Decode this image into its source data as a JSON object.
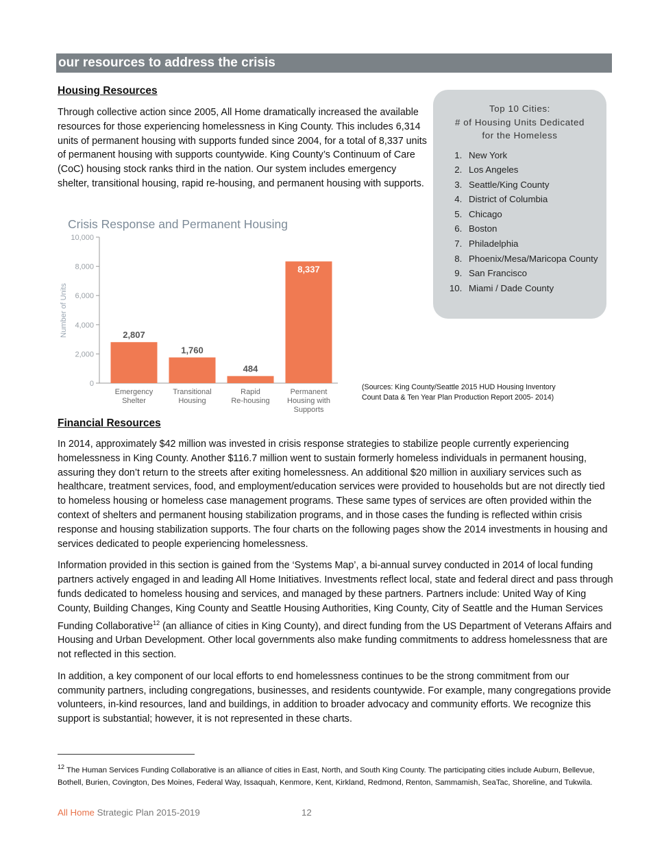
{
  "header": {
    "title": "our resources to address the crisis"
  },
  "housing": {
    "heading": "Housing Resources",
    "paragraph": "Through collective action since 2005, All Home dramatically increased the available resources for those experiencing homelessness in King County. This includes 6,314 units of permanent housing with supports funded since 2004, for a total of 8,337 units of permanent housing with supports countywide. King County’s Continuum of Care (CoC) housing stock ranks third in the nation. Our system includes emergency shelter, transitional housing, rapid re-housing, and permanent housing with supports."
  },
  "sidebar": {
    "title_lines": [
      "Top 10 Cities:",
      "# of Housing Units Dedicated",
      "for the Homeless"
    ],
    "items": [
      "New York",
      "Los Angeles",
      "Seattle/King County",
      "District of Columbia",
      "Chicago",
      "Boston",
      "Philadelphia",
      "Phoenix/Mesa/Maricopa County",
      "San Francisco",
      "Miami / Dade County"
    ]
  },
  "chart_data": {
    "type": "bar",
    "title": "Crisis Response and Permanent Housing",
    "ylabel": "Number of Units",
    "categories": [
      [
        "Emergency",
        "Shelter"
      ],
      [
        "Transitional",
        "Housing"
      ],
      [
        "Rapid",
        "Re-housing"
      ],
      [
        "Permanent",
        "Housing with",
        "Supports"
      ]
    ],
    "values": [
      2807,
      1760,
      484,
      8337
    ],
    "value_labels": [
      "2,807",
      "1,760",
      "484",
      "8,337"
    ],
    "color": "#f07a52",
    "ylim": [
      0,
      10000
    ],
    "yticks": [
      0,
      {
        "value": 2000,
        "label": "2,000"
      },
      {
        "value": 4000,
        "label": "4,000"
      },
      {
        "value": 6000,
        "label": "6,000"
      },
      {
        "value": 8000,
        "label": "8,000"
      },
      {
        "value": 10000,
        "label": "10,000"
      }
    ]
  },
  "chart_source": "(Sources: King County/Seattle 2015 HUD Housing Inventory Count Data & Ten Year Plan Production Report 2005- 2014)",
  "financial": {
    "heading": "Financial Resources",
    "paragraph_1": "In 2014, approximately $42 million was invested in crisis response strategies to stabilize people currently experiencing homelessness in King County. Another $116.7 million went to sustain formerly homeless individuals in permanent housing, assuring they don’t return to the streets after exiting homelessness. An additional $20 million in auxiliary services such as healthcare, treatment services, food, and employment/education services were provided to households but are not directly tied to homeless housing or homeless case management programs.  These same types of services are often provided within the context of shelters and permanent housing stabilization programs, and in those cases the funding is reflected within crisis response and housing stabilization supports. The four charts on the following pages show the 2014 investments in housing and services dedicated to people experiencing homelessness.",
    "paragraph_2_before": "Information provided in this section is gained from the ‘Systems Map’, a bi-annual survey conducted in 2014 of local funding partners actively engaged in and leading All Home Initiatives. Investments reflect local, state and federal direct and pass through funds dedicated to homeless housing and services, and managed by these partners. Partners include: United Way of King County, Building Changes, King County and Seattle Housing Authorities, King County, City of Seattle and the Human Services Funding Collaborative",
    "paragraph_2_after": " (an alliance of cities in King County), and direct funding from the US Department of Veterans Affairs and Housing and Urban Development. Other local governments also make funding commitments to address homelessness that are not reflected in this section.",
    "paragraph_3": "In addition, a key component of our local efforts to end homelessness continues to be the strong commitment from our community partners, including congregations, businesses, and residents countywide. For example, many congregations provide volunteers, in-kind resources, land and buildings, in addition to broader advocacy and community efforts. We recognize this support is substantial; however, it is not represented in these charts."
  },
  "footnote": {
    "ref": "12",
    "text": " The Human Services Funding Collaborative is an alliance of cities in East, North, and South King County. The participating cities include Auburn, Bellevue, Bothell, Burien, Covington, Des Moines, Federal Way, Issaquah, Kenmore, Kent, Kirkland, Redmond, Renton, Sammamish, SeaTac, Shoreline, and Tukwila."
  },
  "footer": {
    "brand": "All Home",
    "title": " Strategic Plan 2015-2019",
    "page": "12"
  }
}
